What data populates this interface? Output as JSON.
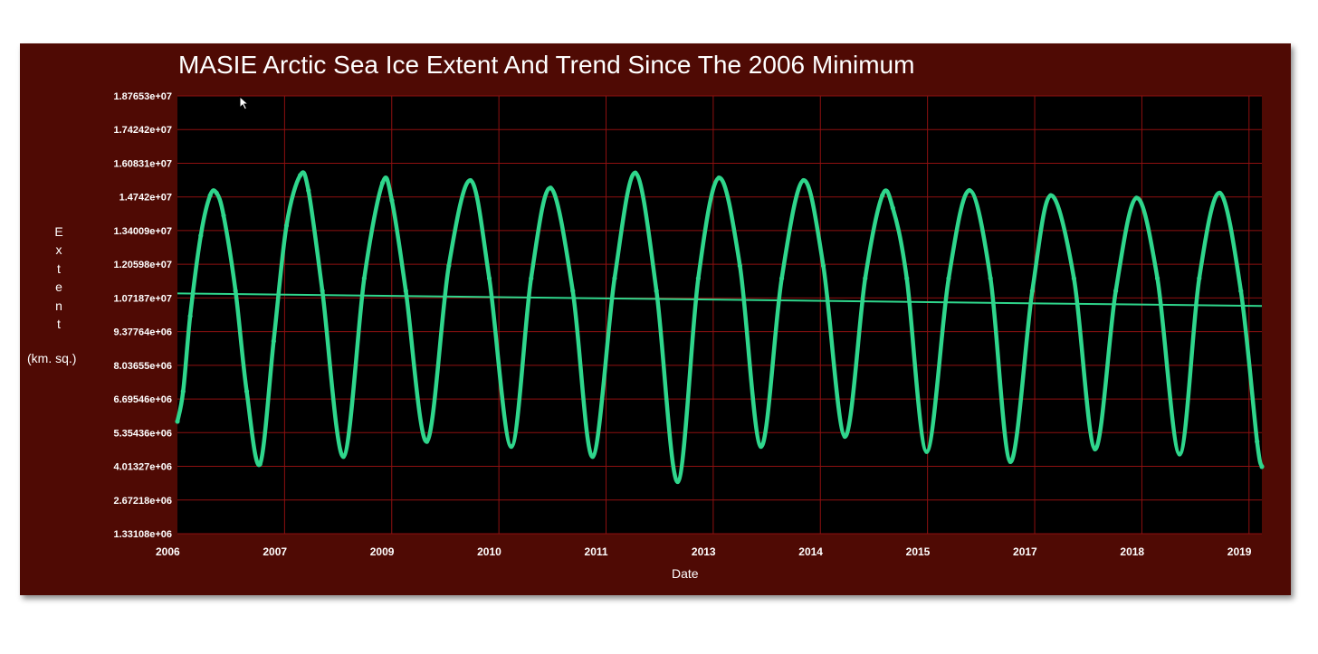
{
  "chart_data": {
    "type": "line",
    "title": "MASIE Arctic Sea Ice Extent And Trend Since The 2006 Minimum",
    "xlabel": "Date",
    "ylabel": "Extent",
    "ylabel_units": "(km. sq.)",
    "y_ticks": [
      "1.87653e+07",
      "1.74242e+07",
      "1.60831e+07",
      "1.4742e+07",
      "1.34009e+07",
      "1.20598e+07",
      "1.07187e+07",
      "9.37764e+06",
      "8.03655e+06",
      "6.69546e+06",
      "5.35436e+06",
      "4.01327e+06",
      "2.67218e+06",
      "1.33108e+06"
    ],
    "x_ticks": [
      "2006",
      "2007",
      "2009",
      "2010",
      "2011",
      "2013",
      "2014",
      "2015",
      "2017",
      "2018",
      "2019"
    ],
    "ylim": [
      1331080,
      18765300
    ],
    "grid": true,
    "colors": {
      "panel": "#4f0a04",
      "plot_background": "#000000",
      "grid": "#8e1010",
      "series": "#2fd68c",
      "text": "#ffffff"
    },
    "series": [
      {
        "kind": "extent",
        "points": [
          [
            "2006-09-20",
            5800000
          ],
          [
            "2006-10-15",
            7000000
          ],
          [
            "2006-11-15",
            10000000
          ],
          [
            "2006-12-31",
            13200000
          ],
          [
            "2007-02-10",
            14800000
          ],
          [
            "2007-03-10",
            14900000
          ],
          [
            "2007-04-10",
            14000000
          ],
          [
            "2007-06-01",
            11000000
          ],
          [
            "2007-07-20",
            7000000
          ],
          [
            "2007-09-16",
            4100000
          ],
          [
            "2007-11-15",
            9000000
          ],
          [
            "2008-01-10",
            13600000
          ],
          [
            "2008-03-10",
            15600000
          ],
          [
            "2008-04-15",
            15000000
          ],
          [
            "2008-06-15",
            11000000
          ],
          [
            "2008-09-15",
            4400000
          ],
          [
            "2008-12-15",
            11500000
          ],
          [
            "2009-03-05",
            15300000
          ],
          [
            "2009-04-15",
            14600000
          ],
          [
            "2009-06-15",
            11000000
          ],
          [
            "2009-09-15",
            5000000
          ],
          [
            "2009-12-20",
            12000000
          ],
          [
            "2010-03-25",
            15400000
          ],
          [
            "2010-06-15",
            11500000
          ],
          [
            "2010-09-19",
            4800000
          ],
          [
            "2010-12-15",
            11500000
          ],
          [
            "2011-03-10",
            15100000
          ],
          [
            "2011-06-15",
            11000000
          ],
          [
            "2011-09-10",
            4400000
          ],
          [
            "2011-12-15",
            11500000
          ],
          [
            "2012-03-15",
            15700000
          ],
          [
            "2012-06-15",
            11000000
          ],
          [
            "2012-09-16",
            3400000
          ],
          [
            "2012-12-15",
            11500000
          ],
          [
            "2013-03-15",
            15500000
          ],
          [
            "2013-06-15",
            12000000
          ],
          [
            "2013-09-15",
            4800000
          ],
          [
            "2013-12-15",
            11500000
          ],
          [
            "2014-03-20",
            15400000
          ],
          [
            "2014-06-15",
            12000000
          ],
          [
            "2014-09-17",
            5200000
          ],
          [
            "2014-12-15",
            11500000
          ],
          [
            "2015-02-28",
            14800000
          ],
          [
            "2015-04-15",
            14300000
          ],
          [
            "2015-06-15",
            11500000
          ],
          [
            "2015-09-10",
            4600000
          ],
          [
            "2015-12-15",
            11500000
          ],
          [
            "2016-03-15",
            15000000
          ],
          [
            "2016-06-15",
            11500000
          ],
          [
            "2016-09-10",
            4200000
          ],
          [
            "2016-12-15",
            11000000
          ],
          [
            "2017-03-05",
            14800000
          ],
          [
            "2017-06-15",
            11500000
          ],
          [
            "2017-09-15",
            4700000
          ],
          [
            "2017-12-15",
            11000000
          ],
          [
            "2018-03-15",
            14700000
          ],
          [
            "2018-06-15",
            11500000
          ],
          [
            "2018-09-20",
            4500000
          ],
          [
            "2018-12-15",
            11500000
          ],
          [
            "2019-03-15",
            14900000
          ],
          [
            "2019-06-15",
            11000000
          ],
          [
            "2019-08-25",
            5000000
          ],
          [
            "2019-09-15",
            4000000
          ]
        ]
      },
      {
        "kind": "trend",
        "points": [
          [
            "2006-09-20",
            10900000
          ],
          [
            "2019-09-15",
            10400000
          ]
        ]
      }
    ]
  }
}
